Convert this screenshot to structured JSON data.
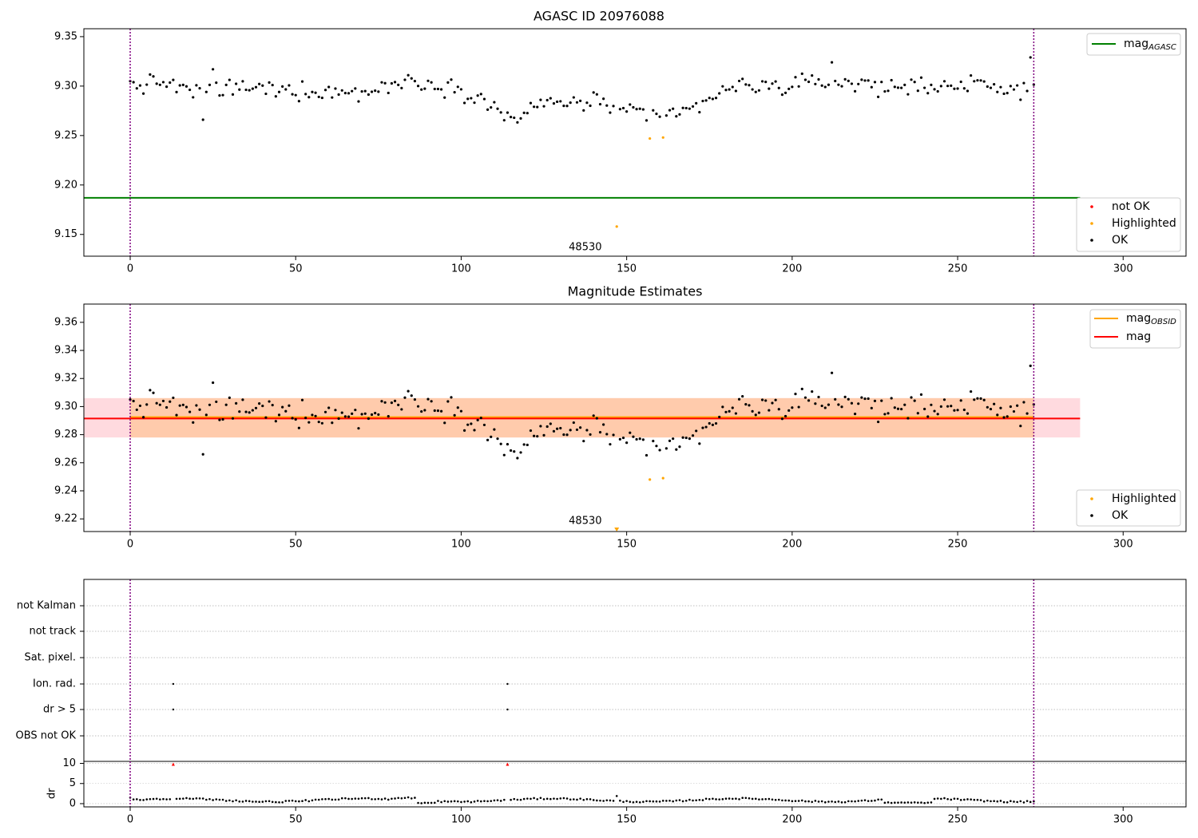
{
  "chart_data": [
    {
      "type": "scatter",
      "title": "AGASC ID 20976088",
      "xlim": [
        -14,
        319
      ],
      "ylim": [
        9.128,
        9.358
      ],
      "xticks": [
        0,
        50,
        100,
        150,
        200,
        250,
        300
      ],
      "yticks": [
        9.15,
        9.2,
        9.25,
        9.3,
        9.35
      ],
      "grid": false,
      "vlines": [
        0,
        273
      ],
      "hline": {
        "label": "mag_AGASC",
        "y": 9.187,
        "color": "#008000"
      },
      "legends": [
        {
          "placement": "upper-right",
          "entries": [
            {
              "label": "mag",
              "sub": "AGASC",
              "color": "#008000",
              "kind": "line"
            }
          ]
        },
        {
          "placement": "lower-right",
          "entries": [
            {
              "label": "not OK",
              "color": "#ff0000",
              "kind": "dot"
            },
            {
              "label": "Highlighted",
              "color": "#ffa500",
              "kind": "dot"
            },
            {
              "label": "OK",
              "color": "#000000",
              "kind": "dot"
            }
          ]
        }
      ],
      "annotations": [
        {
          "text": "48530",
          "x": 137.5,
          "y": 9.137
        }
      ],
      "highlighted": {
        "x": [
          147,
          157,
          161
        ],
        "y": [
          9.158,
          9.247,
          9.248
        ]
      }
    },
    {
      "type": "scatter",
      "title": "Magnitude Estimates",
      "xlim": [
        -14,
        319
      ],
      "ylim": [
        9.211,
        9.373
      ],
      "xticks": [
        0,
        50,
        100,
        150,
        200,
        250,
        300
      ],
      "yticks": [
        9.22,
        9.24,
        9.26,
        9.28,
        9.3,
        9.32,
        9.34,
        9.36
      ],
      "grid": false,
      "vlines": [
        0,
        273
      ],
      "bands": [
        {
          "y0": 9.278,
          "y1": 9.306,
          "x0": -14,
          "x1": 287,
          "color": "#ffd6dc"
        },
        {
          "y0": 9.278,
          "y1": 9.306,
          "x0": 0,
          "x1": 273,
          "color": "#ffc9a6"
        }
      ],
      "lines": [
        {
          "label": "mag_OBSID",
          "y": 9.2925,
          "x0": 0,
          "x1": 273,
          "color": "#ffa500"
        },
        {
          "label": "mag",
          "y": 9.2915,
          "x0": -14,
          "x1": 287,
          "color": "#ff0000"
        }
      ],
      "legends": [
        {
          "placement": "upper-right",
          "entries": [
            {
              "label": "mag",
              "sub": "OBSID",
              "color": "#ffa500",
              "kind": "line"
            },
            {
              "label": "mag",
              "sub": "",
              "color": "#ff0000",
              "kind": "line"
            }
          ]
        },
        {
          "placement": "lower-right",
          "entries": [
            {
              "label": "Highlighted",
              "color": "#ffa500",
              "kind": "dot"
            },
            {
              "label": "OK",
              "color": "#000000",
              "kind": "dot"
            }
          ]
        }
      ],
      "annotations": [
        {
          "text": "48530",
          "x": 137.5,
          "y": 9.2185
        }
      ],
      "highlighted": {
        "x": [
          157,
          161
        ],
        "y": [
          9.248,
          9.249
        ]
      },
      "offscale_marker": {
        "x": 147,
        "y": 9.211,
        "color": "#ffa500"
      }
    },
    {
      "type": "scatter",
      "xlim": [
        -14,
        319
      ],
      "xticks": [
        0,
        50,
        100,
        150,
        200,
        250,
        300
      ],
      "vlines": [
        0,
        273
      ],
      "flag_rows": [
        "not Kalman",
        "not track",
        "Sat. pixel.",
        "Ion. rad.",
        "dr > 5",
        "OBS not OK"
      ],
      "flags": [
        {
          "row": "Ion. rad.",
          "x": [
            13,
            114
          ]
        },
        {
          "row": "dr > 5",
          "x": [
            13,
            114
          ]
        }
      ],
      "dr": {
        "ylabel": "dr",
        "yticks": [
          0,
          5,
          10
        ],
        "ylim": [
          -0.8,
          10.5
        ],
        "outliers": {
          "x": [
            13,
            114
          ],
          "y": [
            9.8,
            9.8
          ],
          "color": "#ff0000"
        }
      }
    }
  ]
}
